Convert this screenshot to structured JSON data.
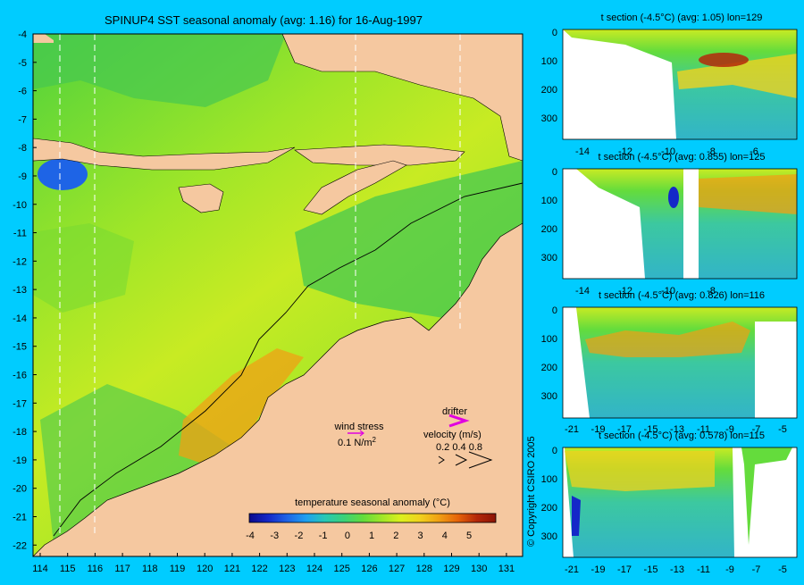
{
  "main_map": {
    "title": "SPINUP4 SST seasonal anomaly (avg: 1.16) for 16-Aug-1997",
    "lat_ticks": [
      "-4",
      "-5",
      "-6",
      "-7",
      "-8",
      "-9",
      "-10",
      "-11",
      "-12",
      "-13",
      "-14",
      "-15",
      "-16",
      "-17",
      "-18",
      "-19",
      "-20",
      "-21",
      "-22"
    ],
    "lon_ticks": [
      "114",
      "115",
      "116",
      "117",
      "118",
      "119",
      "120",
      "121",
      "122",
      "123",
      "124",
      "125",
      "126",
      "127",
      "128",
      "129",
      "130",
      "131"
    ],
    "wind_stress_label": "wind stress",
    "wind_stress_value": "0.1 N/m",
    "wind_stress_exp": "2",
    "drifter_label": "drifter",
    "velocity_label": "velocity (m/s)",
    "velocity_scale": "0.2 0.4 0.8",
    "colorbar_title": "temperature seasonal anomaly (°C)",
    "colorbar_ticks": [
      "-4",
      "-3",
      "-2",
      "-1",
      "0",
      "1",
      "2",
      "3",
      "4",
      "5"
    ],
    "colorbar_colors": [
      "#0a0a8c",
      "#1428c8",
      "#1e64e6",
      "#1ea0f0",
      "#28c8b4",
      "#3cd278",
      "#64dc3c",
      "#a0e628",
      "#dcf01e",
      "#f0d21e",
      "#f0a014",
      "#e6640a",
      "#b4280a",
      "#8c1405"
    ],
    "land_color": "#f5c8a0",
    "copyright": "© Copyright CSIRO 2005"
  },
  "sections": [
    {
      "title": "t section (-4.5°C) (avg: 1.05) lon=129",
      "x_ticks": [
        "-14",
        "-12",
        "-10",
        "-8",
        "-6"
      ],
      "depth_ticks": [
        "0",
        "100",
        "200",
        "300"
      ]
    },
    {
      "title": "t section (-4.5°C) (avg: 0.855) lon=125",
      "x_ticks": [
        "-14",
        "-12",
        "-10",
        "-8"
      ],
      "depth_ticks": [
        "0",
        "100",
        "200",
        "300"
      ]
    },
    {
      "title": "t section (-4.5°C) (avg: 0.826) lon=116",
      "x_ticks": [
        "-21",
        "-19",
        "-17",
        "-15",
        "-13",
        "-11",
        "-9",
        "-7",
        "-5"
      ],
      "depth_ticks": [
        "0",
        "100",
        "200",
        "300"
      ]
    },
    {
      "title": "t section (-4.5°C) (avg: 0.578) lon=115",
      "x_ticks": [
        "-21",
        "-19",
        "-17",
        "-15",
        "-13",
        "-11",
        "-9",
        "-7",
        "-5"
      ],
      "depth_ticks": [
        "0",
        "100",
        "200",
        "300"
      ]
    }
  ]
}
